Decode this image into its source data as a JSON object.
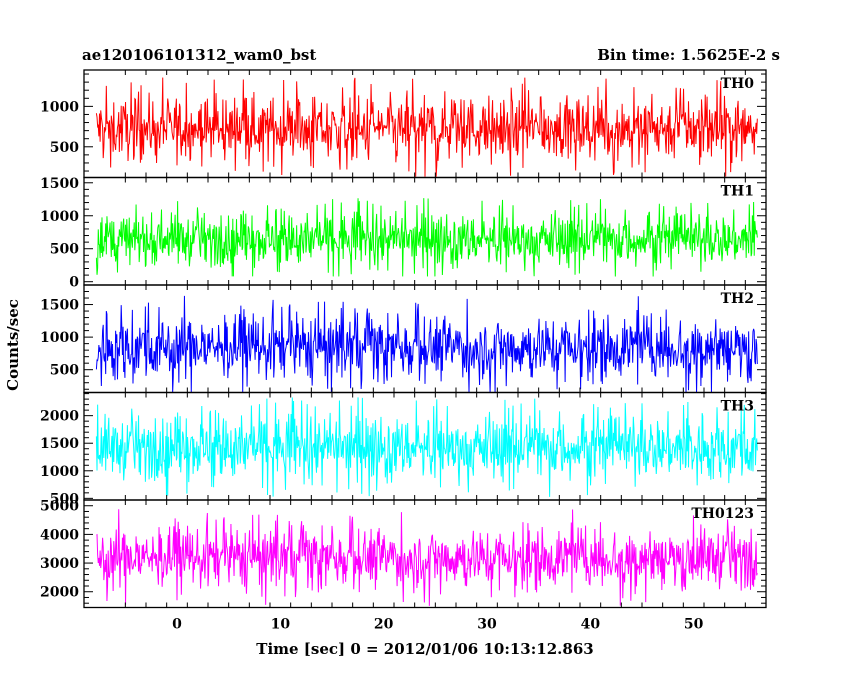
{
  "chart_data": {
    "type": "line",
    "title": "ae120106101312_wam0_bst",
    "subtitle": "Bin time: 1.5625E-2 s",
    "xlabel": "Time [sec] 0 = 2012/01/06 10:13:12.863",
    "ylabel": "Counts/sec",
    "xlim": [
      -9,
      57
    ],
    "x_start": -7.8,
    "x_end": 56.2,
    "x_ticks": [
      0,
      10,
      20,
      30,
      40,
      50
    ],
    "x_tick_labels": [
      "0",
      "10",
      "20",
      "30",
      "40",
      "50"
    ],
    "grid": false,
    "series": [
      {
        "name": "TH0",
        "color": "#ff0000",
        "ylim": [
          120,
          1450
        ],
        "y_ticks": [
          500,
          1000
        ],
        "y_tick_labels": [
          "500",
          "1000"
        ],
        "mean": 730,
        "spread": 330,
        "min": 130,
        "max": 1450
      },
      {
        "name": "TH1",
        "color": "#00ff00",
        "ylim": [
          -50,
          1580
        ],
        "y_ticks": [
          0,
          500,
          1000,
          1500
        ],
        "y_tick_labels": [
          "0",
          "500",
          "1000",
          "1500"
        ],
        "mean": 640,
        "spread": 330,
        "min": 80,
        "max": 1600
      },
      {
        "name": "TH2",
        "color": "#0000ff",
        "ylim": [
          150,
          1800
        ],
        "y_ticks": [
          500,
          1000,
          1500
        ],
        "y_tick_labels": [
          "500",
          "1000",
          "1500"
        ],
        "mean": 850,
        "spread": 420,
        "min": 150,
        "max": 1800
      },
      {
        "name": "TH3",
        "color": "#00ffff",
        "ylim": [
          470,
          2420
        ],
        "y_ticks": [
          500,
          1000,
          1500,
          2000
        ],
        "y_tick_labels": [
          "500",
          "1000",
          "1500",
          "2000"
        ],
        "mean": 1420,
        "spread": 480,
        "min": 480,
        "max": 2420
      },
      {
        "name": "TH0123",
        "color": "#ff00ff",
        "ylim": [
          1450,
          5200
        ],
        "y_ticks": [
          2000,
          3000,
          4000,
          5000
        ],
        "y_tick_labels": [
          "2000",
          "3000",
          "4000",
          "5000"
        ],
        "mean": 3200,
        "spread": 900,
        "min": 1500,
        "max": 5100
      }
    ]
  }
}
